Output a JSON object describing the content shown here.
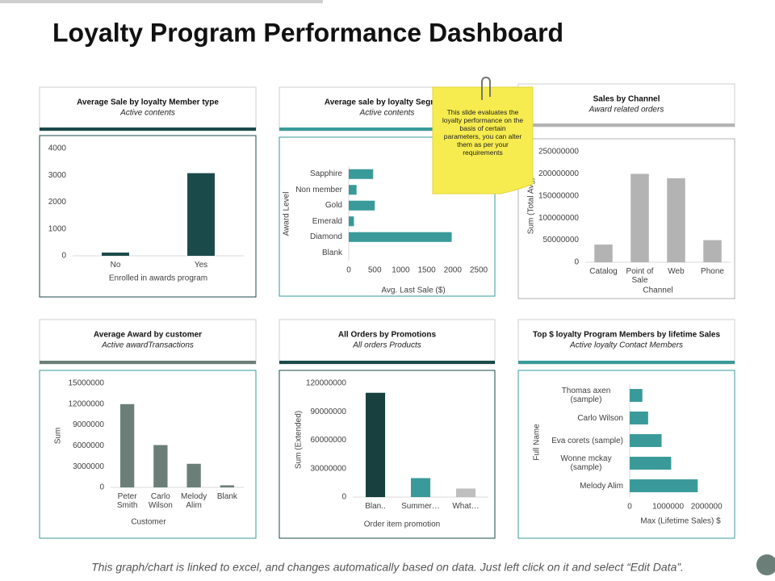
{
  "title": "Loyalty Program Performance Dashboard",
  "note": "This slide evaluates the loyalty performance on the basis of certain parameters, you can alter them as per your requirements",
  "footer": "This graph/chart is linked to excel, and changes automatically based on data.  Just left click on it and select “Edit Data”.",
  "chart_data": [
    {
      "type": "bar",
      "orientation": "vertical",
      "title": "Average Sale by loyalty Member type",
      "subtitle": "Active contents",
      "categories": [
        "No",
        "Yes"
      ],
      "values": [
        120,
        3080
      ],
      "color": "#1b4a4a",
      "xlabel": "Enrolled in awards program",
      "ylim": [
        0,
        4000
      ],
      "yticks": [
        0,
        1000,
        2000,
        3000,
        4000
      ],
      "grid": false
    },
    {
      "type": "bar",
      "orientation": "horizontal",
      "title": "Average sale by loyalty Segment",
      "subtitle": "Active contents",
      "categories": [
        "Sapphire",
        "Non member",
        "Gold",
        "Emerald",
        "Diamond",
        "Blank"
      ],
      "values": [
        470,
        150,
        500,
        100,
        1980,
        0
      ],
      "color": "#3a9a9a",
      "xlabel": "Avg. Last Sale ($)",
      "ylabel": "Award Level",
      "xlim": [
        0,
        2500
      ],
      "xticks": [
        0,
        500,
        1000,
        1500,
        2000,
        2500
      ],
      "grid": false
    },
    {
      "type": "bar",
      "orientation": "vertical",
      "title": "Sales by Channel",
      "subtitle": "Award related orders",
      "categories": [
        "Catalog",
        "Point of Sale",
        "Web",
        "Phone"
      ],
      "values": [
        40000000,
        200000000,
        190000000,
        50000000
      ],
      "color": "#b3b3b3",
      "xlabel": "Channel",
      "ylabel": "Sum (Total Avg)",
      "ylim": [
        0,
        250000000
      ],
      "yticks": [
        0,
        50000000,
        100000000,
        150000000,
        200000000,
        250000000
      ],
      "grid": false
    },
    {
      "type": "bar",
      "orientation": "vertical",
      "title": "Average Award by customer",
      "subtitle": "Active awardTransactions",
      "categories": [
        "Peter Smith",
        "Carlo Wilson",
        "Melody Alim",
        "Blank"
      ],
      "values": [
        12000000,
        6100000,
        3400000,
        300000
      ],
      "color": "#6b7f78",
      "xlabel": "Customer",
      "ylabel": "Sum",
      "ylim": [
        0,
        15000000
      ],
      "yticks": [
        0,
        3000000,
        6000000,
        9000000,
        12000000,
        15000000
      ],
      "grid": false
    },
    {
      "type": "bar",
      "orientation": "vertical",
      "title": "All Orders by Promotions",
      "subtitle": "All orders Products",
      "categories": [
        "Blan..",
        "Summer…",
        "What…"
      ],
      "values": [
        110000000,
        20000000,
        9000000
      ],
      "colors": [
        "#17403f",
        "#3a9a9a",
        "#bfbfbf"
      ],
      "xlabel": "Order item promotion",
      "ylabel": "Sum (Extended)",
      "ylim": [
        0,
        120000000
      ],
      "yticks": [
        0,
        30000000,
        60000000,
        90000000,
        120000000
      ],
      "grid": false
    },
    {
      "type": "bar",
      "orientation": "horizontal",
      "title": "Top $ loyalty Program Members by lifetime Sales",
      "subtitle": "Active loyalty Contact Members",
      "categories": [
        "Thomas axen (sample)",
        "Carlo Wilson",
        "Eva corets (sample)",
        "Wonne mckay (sample)",
        "Melody Alim"
      ],
      "values": [
        330000,
        480000,
        830000,
        1080000,
        1770000
      ],
      "color": "#3a9a9a",
      "xlabel": "Max (Lifetime Sales) $",
      "ylabel": "Full Name",
      "xlim": [
        0,
        2500000
      ],
      "xticks": [
        0,
        1000000,
        2000000
      ],
      "grid": false
    }
  ]
}
